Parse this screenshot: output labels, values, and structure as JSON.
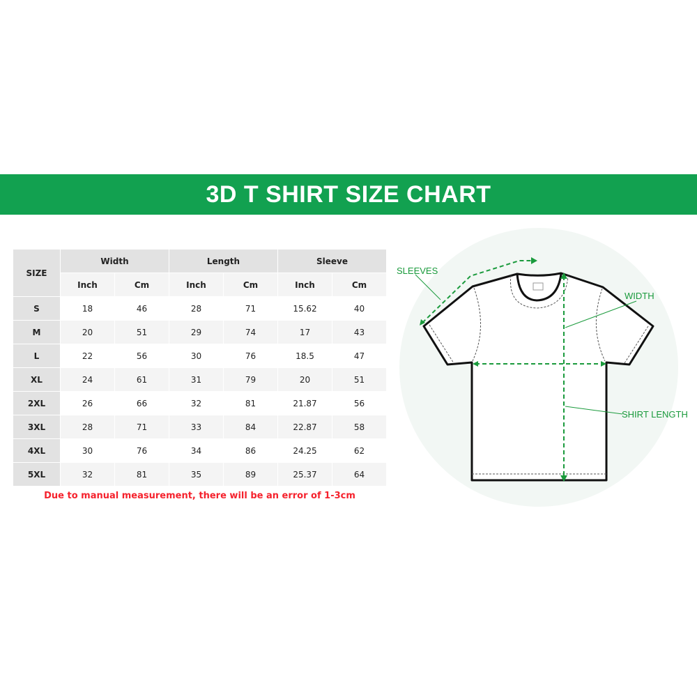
{
  "title": "3D T SHIRT SIZE CHART",
  "table": {
    "size_header": "SIZE",
    "groups": [
      "Width",
      "Length",
      "Sleeve"
    ],
    "units": [
      "Inch",
      "Cm",
      "Inch",
      "Cm",
      "Inch",
      "Cm"
    ],
    "rows": [
      [
        "S",
        "18",
        "46",
        "28",
        "71",
        "15.62",
        "40"
      ],
      [
        "M",
        "20",
        "51",
        "29",
        "74",
        "17",
        "43"
      ],
      [
        "L",
        "22",
        "56",
        "30",
        "76",
        "18.5",
        "47"
      ],
      [
        "XL",
        "24",
        "61",
        "31",
        "79",
        "20",
        "51"
      ],
      [
        "2XL",
        "26",
        "66",
        "32",
        "81",
        "21.87",
        "56"
      ],
      [
        "3XL",
        "28",
        "71",
        "33",
        "84",
        "22.87",
        "58"
      ],
      [
        "4XL",
        "30",
        "76",
        "34",
        "86",
        "24.25",
        "62"
      ],
      [
        "5XL",
        "32",
        "81",
        "35",
        "89",
        "25.37",
        "64"
      ]
    ]
  },
  "note": "Due to manual measurement, there will be an error of 1-3cm",
  "diagram": {
    "labels": {
      "sleeves": "SLEEVES",
      "width": "WIDTH",
      "length": "SHIRT LENGTH"
    }
  },
  "colors": {
    "brand": "#12a150",
    "note": "#f5222d",
    "measure": "#1a9a3c"
  }
}
